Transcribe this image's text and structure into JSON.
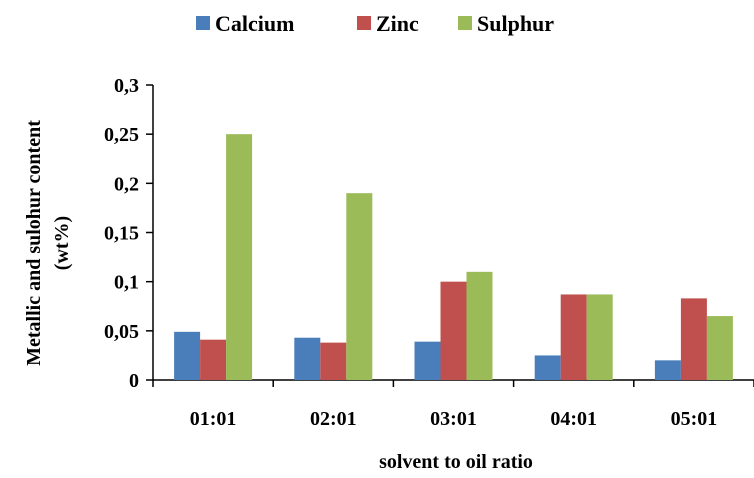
{
  "chart_data": {
    "type": "bar",
    "categories": [
      "01:01",
      "02:01",
      "03:01",
      "04:01",
      "05:01"
    ],
    "series": [
      {
        "name": "Calcium",
        "color": "#4a7ebb",
        "values": [
          0.049,
          0.043,
          0.039,
          0.025,
          0.02
        ]
      },
      {
        "name": "Zinc",
        "color": "#c0504d",
        "values": [
          0.041,
          0.038,
          0.1,
          0.087,
          0.083
        ]
      },
      {
        "name": "Sulphur",
        "color": "#9bbb59",
        "values": [
          0.25,
          0.19,
          0.11,
          0.087,
          0.065
        ]
      }
    ],
    "xlabel": "solvent to oil ratio",
    "ylabel_line1": "Metallic and sulohur content",
    "ylabel_line2": "(wt%)",
    "ylim": [
      0,
      0.3
    ],
    "yticks": [
      {
        "value": 0,
        "label": "0"
      },
      {
        "value": 0.05,
        "label": "0,05"
      },
      {
        "value": 0.1,
        "label": "0,1"
      },
      {
        "value": 0.15,
        "label": "0,15"
      },
      {
        "value": 0.2,
        "label": "0,2"
      },
      {
        "value": 0.25,
        "label": "0,25"
      },
      {
        "value": 0.3,
        "label": "0,3"
      }
    ],
    "grid": false,
    "legend_position": "top-center"
  }
}
